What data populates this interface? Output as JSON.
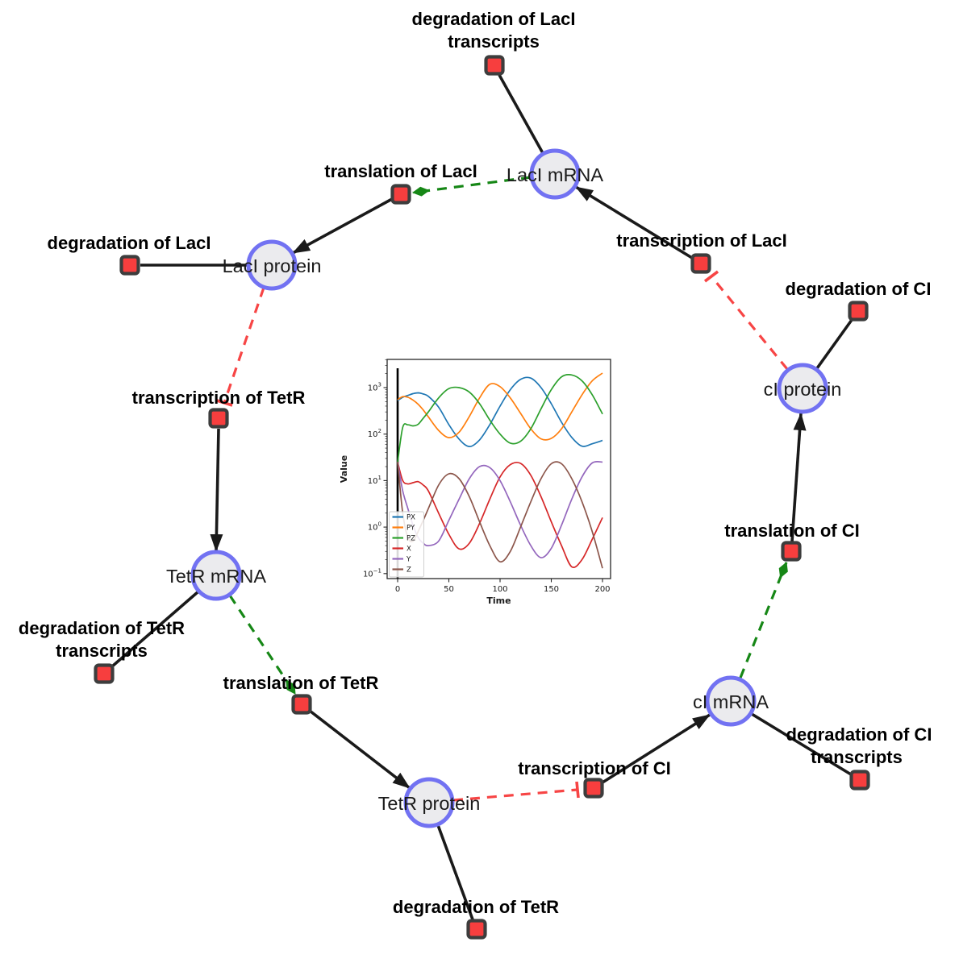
{
  "page": {
    "background": "#ffffff"
  },
  "network": {
    "style": {
      "species_fill": "#ebebee",
      "species_ring": "#7272f2",
      "reaction_fill": "#f73e3e",
      "reaction_border": "#3d3d3d",
      "edge_color": "#1a1a1a",
      "modifier_edge_color": "#168716",
      "inhibition_edge_color": "#f74545"
    },
    "species": [
      {
        "label": "LacI mRNA"
      },
      {
        "label": "LacI protein"
      },
      {
        "label": "cI protein"
      },
      {
        "label": "TetR mRNA"
      },
      {
        "label": "TetR protein"
      },
      {
        "label": "cI mRNA"
      }
    ],
    "reactions": [
      {
        "line1": "degradation of LacI",
        "line2": "transcripts"
      },
      {
        "label": "translation of LacI"
      },
      {
        "label": "degradation of LacI"
      },
      {
        "label": "transcription of LacI"
      },
      {
        "label": "degradation of CI"
      },
      {
        "label": "transcription of TetR"
      },
      {
        "line1": "degradation of TetR",
        "line2": "transcripts"
      },
      {
        "label": "translation of TetR"
      },
      {
        "label": "degradation of TetR"
      },
      {
        "label": "transcription of CI"
      },
      {
        "line1": "degradation of CI",
        "line2": "transcripts"
      },
      {
        "label": "translation of CI"
      }
    ],
    "edges": [
      {
        "from": "LacI mRNA",
        "to": "degradation of LacI transcripts",
        "type": "consumption"
      },
      {
        "from": "LacI mRNA",
        "to": "translation of LacI",
        "type": "modifier"
      },
      {
        "from": "translation of LacI",
        "to": "LacI protein",
        "type": "production"
      },
      {
        "from": "transcription of LacI",
        "to": "LacI mRNA",
        "type": "production"
      },
      {
        "from": "cI protein",
        "to": "transcription of LacI",
        "type": "inhibition"
      },
      {
        "from": "cI protein",
        "to": "degradation of CI",
        "type": "consumption"
      },
      {
        "from": "translation of CI",
        "to": "cI protein",
        "type": "production"
      },
      {
        "from": "LacI protein",
        "to": "degradation of LacI",
        "type": "consumption"
      },
      {
        "from": "LacI protein",
        "to": "transcription of TetR",
        "type": "inhibition"
      },
      {
        "from": "transcription of TetR",
        "to": "TetR mRNA",
        "type": "production"
      },
      {
        "from": "TetR mRNA",
        "to": "degradation of TetR transcripts",
        "type": "consumption"
      },
      {
        "from": "TetR mRNA",
        "to": "translation of TetR",
        "type": "modifier"
      },
      {
        "from": "translation of TetR",
        "to": "TetR protein",
        "type": "production"
      },
      {
        "from": "TetR protein",
        "to": "degradation of TetR",
        "type": "consumption"
      },
      {
        "from": "TetR protein",
        "to": "transcription of CI",
        "type": "inhibition"
      },
      {
        "from": "transcription of CI",
        "to": "cI mRNA",
        "type": "production"
      },
      {
        "from": "cI mRNA",
        "to": "degradation of CI transcripts",
        "type": "consumption"
      },
      {
        "from": "cI mRNA",
        "to": "translation of CI",
        "type": "modifier"
      }
    ]
  },
  "chart_data": {
    "type": "line",
    "title": "",
    "xlabel": "Time",
    "ylabel": "Value",
    "x_ticks": [
      0,
      50,
      100,
      150,
      200
    ],
    "y_scale": "log",
    "y_tick_exponents": [
      -1,
      0,
      1,
      2,
      3
    ],
    "xlim": [
      -10,
      208
    ],
    "ylim": [
      0.08,
      4000
    ],
    "grid": false,
    "legend_position": "lower left",
    "annotations": [
      {
        "type": "vline",
        "x": 0,
        "color": "#000000"
      }
    ],
    "x": [
      0,
      5,
      10,
      15,
      20,
      25,
      30,
      40,
      50,
      60,
      70,
      80,
      90,
      100,
      110,
      120,
      130,
      140,
      150,
      160,
      170,
      180,
      190,
      200
    ],
    "series": [
      {
        "name": "PX",
        "color": "#1f77b4",
        "values": [
          525,
          620,
          680,
          740,
          770,
          730,
          650,
          380,
          160,
          78,
          54,
          75,
          160,
          400,
          900,
          1500,
          1600,
          1000,
          450,
          180,
          85,
          55,
          62,
          73
        ]
      },
      {
        "name": "PY",
        "color": "#ff7f0e",
        "values": [
          550,
          640,
          620,
          540,
          440,
          330,
          235,
          120,
          84,
          110,
          240,
          600,
          1180,
          1050,
          600,
          280,
          130,
          79,
          81,
          130,
          300,
          700,
          1400,
          2050
        ]
      },
      {
        "name": "PZ",
        "color": "#2ca02c",
        "values": [
          25,
          140,
          158,
          150,
          163,
          220,
          300,
          600,
          950,
          1000,
          800,
          450,
          200,
          100,
          64,
          70,
          130,
          350,
          900,
          1700,
          1870,
          1400,
          700,
          270
        ]
      },
      {
        "name": "X",
        "color": "#d62728",
        "values": [
          25,
          10,
          8.5,
          9,
          9.5,
          8,
          6,
          2,
          0.7,
          0.34,
          0.45,
          1.2,
          4,
          12,
          22,
          23.5,
          13,
          4.5,
          1.3,
          0.4,
          0.14,
          0.2,
          0.55,
          1.6
        ]
      },
      {
        "name": "Y",
        "color": "#9467bd",
        "values": [
          25,
          6,
          2.5,
          1.1,
          0.6,
          0.45,
          0.4,
          0.5,
          1.4,
          4,
          11,
          20,
          19,
          10,
          3.5,
          1.1,
          0.4,
          0.22,
          0.35,
          1.1,
          4,
          12,
          24,
          25
        ]
      },
      {
        "name": "Z",
        "color": "#8c564b",
        "values": [
          25,
          2,
          0.6,
          0.5,
          0.8,
          1.4,
          2.5,
          8,
          14,
          11,
          4.5,
          1.3,
          0.4,
          0.18,
          0.3,
          1,
          3.5,
          11,
          23,
          23,
          11,
          3.5,
          0.8,
          0.13
        ]
      }
    ]
  }
}
